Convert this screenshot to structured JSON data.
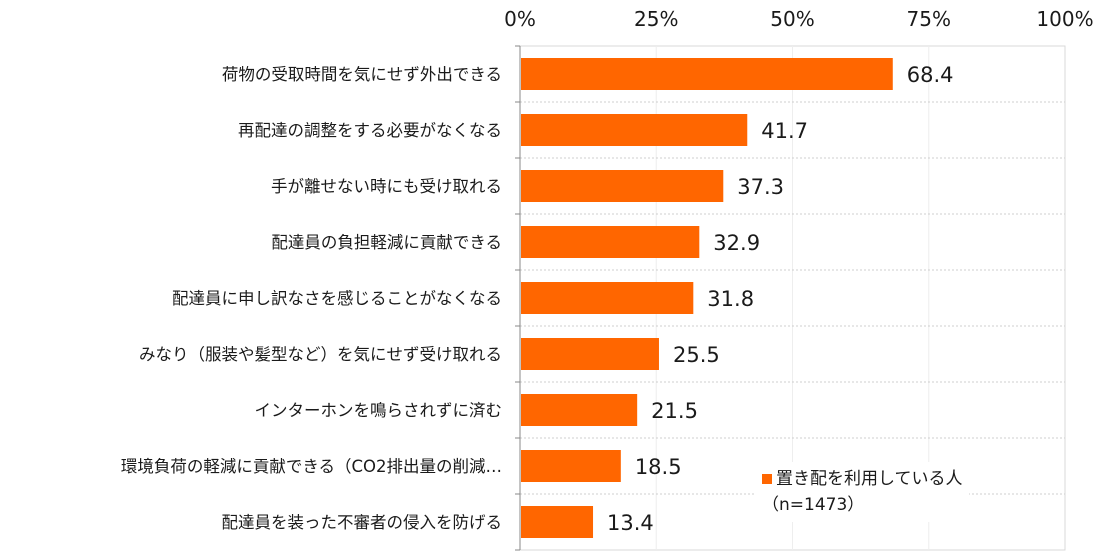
{
  "chart_data": {
    "type": "bar",
    "orientation": "horizontal",
    "categories": [
      "荷物の受取時間を気にせず外出できる",
      "再配達の調整をする必要がなくなる",
      "手が離せない時にも受け取れる",
      "配達員の負担軽減に貢献できる",
      "配達員に申し訳なさを感じることがなくなる",
      "みなり（服装や髪型など）を気にせず受け取れる",
      "インターホンを鳴らされずに済む",
      "環境負荷の軽減に貢献できる（CO2排出量の削減…",
      "配達員を装った不審者の侵入を防げる"
    ],
    "series": [
      {
        "name": "置き配を利用している人",
        "sample": "（n=1473）",
        "color": "#ff6600",
        "values": [
          68.4,
          41.7,
          37.3,
          32.9,
          31.8,
          25.5,
          21.5,
          18.5,
          13.4
        ]
      }
    ],
    "value_labels": [
      "68.4",
      "41.7",
      "37.3",
      "32.9",
      "31.8",
      "25.5",
      "21.5",
      "18.5",
      "13.4"
    ],
    "xlim": [
      0,
      100
    ],
    "x_ticks": [
      0,
      25,
      50,
      75,
      100
    ],
    "x_tick_labels": [
      "0%",
      "25%",
      "50%",
      "75%",
      "100%"
    ],
    "grid": true,
    "legend_position": "bottom-right",
    "title": "",
    "xlabel": "",
    "ylabel": ""
  }
}
